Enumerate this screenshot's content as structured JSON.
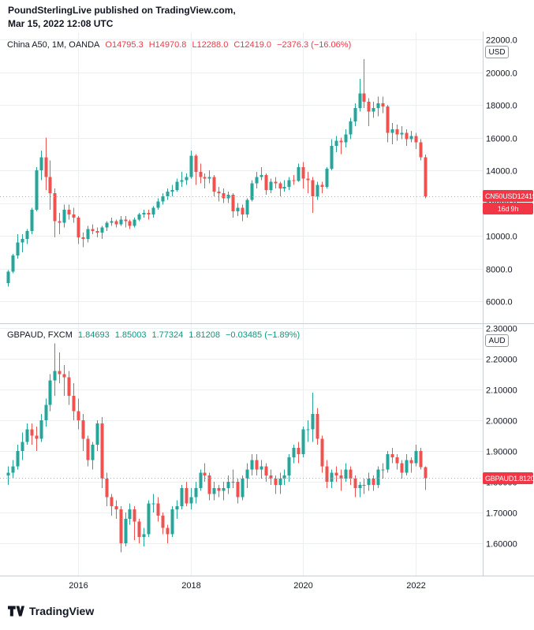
{
  "header": {
    "line1": "PoundSterlingLive published on TradingView.com,",
    "line2": "Mar 15, 2022 12:08 UTC"
  },
  "panels": [
    {
      "legend_title": "China A50, 1M, OANDA",
      "legend_values": [
        "O14795.3",
        "H14970.8",
        "L12288.0",
        "C12419.0",
        "−2376.3 (−16.06%)"
      ],
      "legend_color": "down",
      "currency_badge": "USD",
      "price_label": {
        "symbol": "CN50USD",
        "price": "12419.0"
      },
      "countdown": "16d 9h"
    },
    {
      "legend_title": "GBPAUD, FXCM",
      "legend_values": [
        "1.84693",
        "1.85003",
        "1.77324",
        "1.81208",
        "−0.03485 (−1.89%)"
      ],
      "legend_color": "up",
      "currency_badge": "AUD",
      "price_label": {
        "symbol": "GBPAUD",
        "price": "1.81208"
      }
    }
  ],
  "time_axis": {
    "labels": [
      "2016",
      "2018",
      "2020",
      "2022"
    ],
    "years": [
      2016,
      2018,
      2020,
      2022
    ]
  },
  "footer": {
    "brand": "TradingView"
  },
  "colors": {
    "up": "#26a69a",
    "down": "#ef5350",
    "label_red": "#f23645",
    "legend_green": "#089981",
    "grid": "#eceff2",
    "axis": "#c9cdd4",
    "text": "#131722",
    "price_line": "#a8adb5"
  },
  "chart_data": [
    {
      "type": "candlestick",
      "title": "China A50, 1M, OANDA",
      "symbol": "CN50USD",
      "exchange": "OANDA",
      "interval": "1M",
      "currency": "USD",
      "x_start": "2014-10",
      "x_interval": "month",
      "ylim": [
        6000,
        22000
      ],
      "yticks": [
        22000,
        20000,
        18000,
        16000,
        14000,
        12000,
        10000,
        8000,
        6000
      ],
      "tick_decimals": 1,
      "last": {
        "open": 14795.3,
        "high": 14970.8,
        "low": 12288.0,
        "close": 12419.0,
        "change": -2376.3,
        "change_pct": -16.06,
        "countdown": "16d 9h"
      },
      "ohlc": [
        [
          7100,
          7900,
          6900,
          7800
        ],
        [
          7800,
          8900,
          7700,
          8800
        ],
        [
          8800,
          10100,
          8600,
          9600
        ],
        [
          9600,
          10100,
          9000,
          9800
        ],
        [
          9800,
          10400,
          9500,
          10300
        ],
        [
          10300,
          11700,
          10100,
          11600
        ],
        [
          11600,
          14200,
          11500,
          14000
        ],
        [
          14000,
          15200,
          13400,
          14800
        ],
        [
          14800,
          16000,
          12800,
          13600
        ],
        [
          13600,
          14600,
          11600,
          12600
        ],
        [
          12600,
          12900,
          9900,
          10900
        ],
        [
          10900,
          11400,
          10100,
          10800
        ],
        [
          10800,
          11900,
          10500,
          11600
        ],
        [
          11600,
          11900,
          11000,
          11300
        ],
        [
          11300,
          11700,
          10800,
          11100
        ],
        [
          11100,
          11200,
          9500,
          9900
        ],
        [
          9900,
          10200,
          9300,
          9800
        ],
        [
          9800,
          10600,
          9600,
          10400
        ],
        [
          10400,
          10700,
          10100,
          10300
        ],
        [
          10300,
          10500,
          9900,
          10200
        ],
        [
          10200,
          10600,
          9800,
          10500
        ],
        [
          10500,
          10900,
          10300,
          10800
        ],
        [
          10800,
          11100,
          10600,
          10900
        ],
        [
          10900,
          11000,
          10500,
          10700
        ],
        [
          10700,
          11200,
          10600,
          11000
        ],
        [
          11000,
          11200,
          10500,
          10900
        ],
        [
          10900,
          11000,
          10400,
          10600
        ],
        [
          10600,
          11100,
          10500,
          11000
        ],
        [
          11000,
          11400,
          10900,
          11300
        ],
        [
          11300,
          11600,
          11100,
          11400
        ],
        [
          11400,
          11600,
          11000,
          11300
        ],
        [
          11300,
          11800,
          11100,
          11700
        ],
        [
          11700,
          12300,
          11600,
          12100
        ],
        [
          12100,
          12600,
          11900,
          12400
        ],
        [
          12400,
          12900,
          12200,
          12700
        ],
        [
          12700,
          13100,
          12400,
          12800
        ],
        [
          12800,
          13500,
          12700,
          13300
        ],
        [
          13300,
          13900,
          13000,
          13400
        ],
        [
          13400,
          13800,
          13100,
          13600
        ],
        [
          13600,
          15200,
          13500,
          14900
        ],
        [
          14900,
          15000,
          13100,
          13900
        ],
        [
          13900,
          14400,
          13200,
          13600
        ],
        [
          13600,
          13800,
          12900,
          13500
        ],
        [
          13500,
          14000,
          13200,
          13600
        ],
        [
          13600,
          13700,
          12400,
          12700
        ],
        [
          12700,
          13000,
          12100,
          12600
        ],
        [
          12600,
          12900,
          12000,
          12300
        ],
        [
          12300,
          12700,
          12000,
          12500
        ],
        [
          12500,
          12600,
          11100,
          11500
        ],
        [
          11500,
          12000,
          11200,
          11700
        ],
        [
          11700,
          11900,
          10900,
          11300
        ],
        [
          11300,
          12300,
          11100,
          12200
        ],
        [
          12200,
          13400,
          12100,
          13200
        ],
        [
          13200,
          13900,
          12900,
          13600
        ],
        [
          13600,
          14200,
          13400,
          13700
        ],
        [
          13700,
          13800,
          12500,
          12800
        ],
        [
          12800,
          13500,
          12600,
          13300
        ],
        [
          13300,
          13600,
          12900,
          13200
        ],
        [
          13200,
          13300,
          12400,
          12900
        ],
        [
          12900,
          13400,
          12700,
          13000
        ],
        [
          13000,
          13600,
          12800,
          13400
        ],
        [
          13400,
          13700,
          13100,
          13350
        ],
        [
          13350,
          14400,
          13300,
          14200
        ],
        [
          14200,
          14500,
          12900,
          13500
        ],
        [
          13500,
          13900,
          12600,
          13400
        ],
        [
          13400,
          13600,
          11400,
          12400
        ],
        [
          12400,
          13300,
          12200,
          13100
        ],
        [
          13100,
          13300,
          12600,
          13000
        ],
        [
          13000,
          14200,
          12900,
          14100
        ],
        [
          14100,
          15900,
          14000,
          15500
        ],
        [
          15500,
          16100,
          15100,
          15800
        ],
        [
          15800,
          16000,
          15000,
          15700
        ],
        [
          15700,
          16500,
          15400,
          16200
        ],
        [
          16200,
          17200,
          15900,
          17000
        ],
        [
          17000,
          18100,
          16700,
          17800
        ],
        [
          17800,
          19600,
          17600,
          18700
        ],
        [
          18700,
          20800,
          17800,
          18200
        ],
        [
          18200,
          18400,
          16700,
          17600
        ],
        [
          17600,
          18200,
          17200,
          17800
        ],
        [
          17800,
          18500,
          17300,
          18100
        ],
        [
          18100,
          18500,
          17500,
          17900
        ],
        [
          17900,
          18000,
          15700,
          16300
        ],
        [
          16300,
          16900,
          15600,
          16500
        ],
        [
          16500,
          16800,
          15800,
          16200
        ],
        [
          16200,
          16700,
          15900,
          16300
        ],
        [
          16300,
          16500,
          15500,
          15900
        ],
        [
          15900,
          16400,
          15700,
          16100
        ],
        [
          16100,
          16300,
          15300,
          15700
        ],
        [
          15700,
          15900,
          14600,
          14800
        ],
        [
          14795.3,
          14970.8,
          12288.0,
          12419.0
        ]
      ]
    },
    {
      "type": "candlestick",
      "title": "GBPAUD, FXCM",
      "symbol": "GBPAUD",
      "exchange": "FXCM",
      "interval": "1M",
      "currency": "AUD",
      "x_start": "2014-10",
      "x_interval": "month",
      "ylim": [
        1.55,
        2.3
      ],
      "yticks": [
        2.3,
        2.2,
        2.1,
        2.0,
        1.9,
        1.8,
        1.7,
        1.6
      ],
      "tick_decimals": 5,
      "last": {
        "open": 1.84693,
        "high": 1.85003,
        "low": 1.77324,
        "close": 1.81208,
        "change": -0.03485,
        "change_pct": -1.89
      },
      "ohlc": [
        [
          1.82,
          1.85,
          1.79,
          1.83
        ],
        [
          1.83,
          1.87,
          1.81,
          1.85
        ],
        [
          1.85,
          1.92,
          1.84,
          1.9
        ],
        [
          1.9,
          1.96,
          1.87,
          1.93
        ],
        [
          1.93,
          1.99,
          1.92,
          1.97
        ],
        [
          1.97,
          1.99,
          1.92,
          1.95
        ],
        [
          1.95,
          1.98,
          1.9,
          1.94
        ],
        [
          1.94,
          2.02,
          1.93,
          2.0
        ],
        [
          2.0,
          2.07,
          1.98,
          2.05
        ],
        [
          2.05,
          2.15,
          2.03,
          2.13
        ],
        [
          2.13,
          2.25,
          2.08,
          2.16
        ],
        [
          2.16,
          2.22,
          2.12,
          2.15
        ],
        [
          2.15,
          2.18,
          2.08,
          2.14
        ],
        [
          2.14,
          2.16,
          2.05,
          2.08
        ],
        [
          2.08,
          2.12,
          2.0,
          2.03
        ],
        [
          2.03,
          2.07,
          1.97,
          2.0
        ],
        [
          2.0,
          2.02,
          1.9,
          1.94
        ],
        [
          1.94,
          1.95,
          1.85,
          1.87
        ],
        [
          1.87,
          1.93,
          1.84,
          1.92
        ],
        [
          1.92,
          2.0,
          1.9,
          1.99
        ],
        [
          1.99,
          2.01,
          1.78,
          1.81
        ],
        [
          1.81,
          1.83,
          1.72,
          1.75
        ],
        [
          1.75,
          1.76,
          1.69,
          1.72
        ],
        [
          1.72,
          1.74,
          1.68,
          1.71
        ],
        [
          1.71,
          1.72,
          1.57,
          1.6
        ],
        [
          1.6,
          1.7,
          1.59,
          1.68
        ],
        [
          1.68,
          1.73,
          1.66,
          1.71
        ],
        [
          1.71,
          1.72,
          1.61,
          1.67
        ],
        [
          1.67,
          1.68,
          1.6,
          1.62
        ],
        [
          1.62,
          1.65,
          1.59,
          1.63
        ],
        [
          1.63,
          1.74,
          1.62,
          1.73
        ],
        [
          1.73,
          1.76,
          1.7,
          1.73
        ],
        [
          1.73,
          1.75,
          1.67,
          1.69
        ],
        [
          1.69,
          1.7,
          1.63,
          1.65
        ],
        [
          1.65,
          1.66,
          1.6,
          1.63
        ],
        [
          1.63,
          1.72,
          1.62,
          1.71
        ],
        [
          1.71,
          1.74,
          1.68,
          1.72
        ],
        [
          1.72,
          1.79,
          1.71,
          1.78
        ],
        [
          1.78,
          1.8,
          1.72,
          1.73
        ],
        [
          1.73,
          1.78,
          1.71,
          1.75
        ],
        [
          1.75,
          1.8,
          1.73,
          1.78
        ],
        [
          1.78,
          1.84,
          1.77,
          1.83
        ],
        [
          1.83,
          1.86,
          1.8,
          1.82
        ],
        [
          1.82,
          1.83,
          1.74,
          1.76
        ],
        [
          1.76,
          1.8,
          1.74,
          1.78
        ],
        [
          1.78,
          1.79,
          1.75,
          1.77
        ],
        [
          1.77,
          1.8,
          1.74,
          1.78
        ],
        [
          1.78,
          1.82,
          1.76,
          1.8
        ],
        [
          1.8,
          1.84,
          1.78,
          1.8
        ],
        [
          1.8,
          1.81,
          1.73,
          1.75
        ],
        [
          1.75,
          1.82,
          1.74,
          1.81
        ],
        [
          1.81,
          1.86,
          1.78,
          1.84
        ],
        [
          1.84,
          1.89,
          1.82,
          1.87
        ],
        [
          1.87,
          1.89,
          1.82,
          1.84
        ],
        [
          1.84,
          1.87,
          1.81,
          1.85
        ],
        [
          1.85,
          1.86,
          1.8,
          1.82
        ],
        [
          1.82,
          1.84,
          1.79,
          1.81
        ],
        [
          1.81,
          1.82,
          1.76,
          1.79
        ],
        [
          1.79,
          1.83,
          1.76,
          1.81
        ],
        [
          1.81,
          1.84,
          1.79,
          1.82
        ],
        [
          1.82,
          1.89,
          1.8,
          1.88
        ],
        [
          1.88,
          1.92,
          1.86,
          1.91
        ],
        [
          1.91,
          1.93,
          1.86,
          1.89
        ],
        [
          1.89,
          1.98,
          1.88,
          1.97
        ],
        [
          1.97,
          2.0,
          1.93,
          1.97
        ],
        [
          1.97,
          2.09,
          1.93,
          2.02
        ],
        [
          2.02,
          2.04,
          1.92,
          1.94
        ],
        [
          1.94,
          1.95,
          1.83,
          1.85
        ],
        [
          1.85,
          1.87,
          1.78,
          1.8
        ],
        [
          1.8,
          1.84,
          1.78,
          1.83
        ],
        [
          1.83,
          1.85,
          1.8,
          1.82
        ],
        [
          1.82,
          1.84,
          1.77,
          1.81
        ],
        [
          1.81,
          1.86,
          1.8,
          1.84
        ],
        [
          1.84,
          1.85,
          1.79,
          1.81
        ],
        [
          1.81,
          1.82,
          1.75,
          1.78
        ],
        [
          1.78,
          1.8,
          1.75,
          1.79
        ],
        [
          1.79,
          1.81,
          1.76,
          1.79
        ],
        [
          1.79,
          1.83,
          1.77,
          1.81
        ],
        [
          1.81,
          1.82,
          1.77,
          1.79
        ],
        [
          1.79,
          1.85,
          1.78,
          1.84
        ],
        [
          1.84,
          1.86,
          1.81,
          1.84
        ],
        [
          1.84,
          1.9,
          1.83,
          1.89
        ],
        [
          1.89,
          1.91,
          1.86,
          1.88
        ],
        [
          1.88,
          1.89,
          1.84,
          1.86
        ],
        [
          1.86,
          1.87,
          1.81,
          1.83
        ],
        [
          1.83,
          1.89,
          1.82,
          1.87
        ],
        [
          1.87,
          1.88,
          1.83,
          1.86
        ],
        [
          1.86,
          1.92,
          1.85,
          1.9
        ],
        [
          1.9,
          1.91,
          1.84,
          1.84693
        ],
        [
          1.84693,
          1.85003,
          1.77324,
          1.81208
        ]
      ]
    }
  ]
}
